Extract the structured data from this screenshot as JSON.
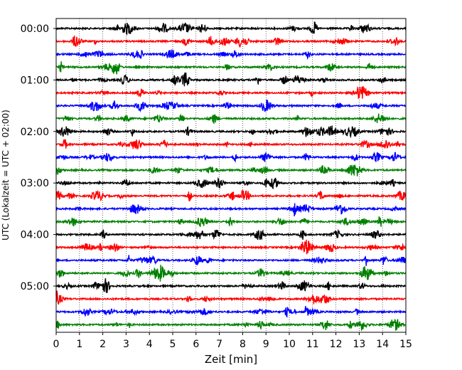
{
  "chart_data": {
    "type": "line",
    "title": "",
    "xlabel": "Zeit  [min]",
    "ylabel": "UTC (Lokalzeit = UTC + 02:00)",
    "xlim": [
      0,
      15
    ],
    "x_ticks": [
      "0",
      "1",
      "2",
      "3",
      "4",
      "5",
      "6",
      "7",
      "8",
      "9",
      "10",
      "11",
      "12",
      "13",
      "14",
      "15"
    ],
    "y_tick_labels": [
      "00:00",
      "01:00",
      "02:00",
      "03:00",
      "04:00",
      "05:00"
    ],
    "y_tick_rows": [
      0,
      4,
      8,
      12,
      16,
      20
    ],
    "grid": "vertical dotted",
    "trace_interval_minutes": 15,
    "trace_count": 24,
    "trace_colors": [
      "#000000",
      "#ff0000",
      "#0000ff",
      "#008000"
    ]
  }
}
